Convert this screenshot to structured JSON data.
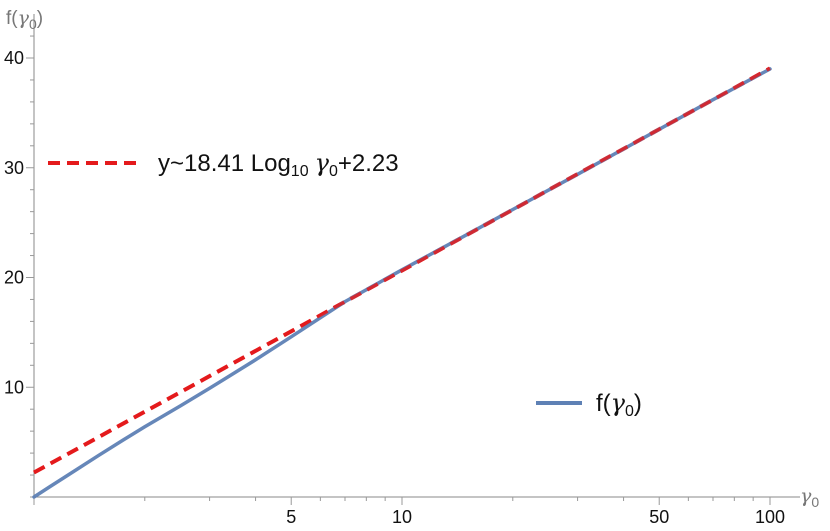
{
  "chart_data": {
    "type": "line",
    "x_scale": "log",
    "xlim": [
      1,
      100
    ],
    "ylim": [
      0,
      40
    ],
    "xlabel": {
      "base": "γ",
      "sub": "0"
    },
    "ylabel": {
      "prefix": "f(",
      "base": "γ",
      "sub": "0",
      "suffix": ")"
    },
    "x_ticks": [
      {
        "value": 5,
        "label": "5"
      },
      {
        "value": 10,
        "label": "10"
      },
      {
        "value": 50,
        "label": "50"
      },
      {
        "value": 100,
        "label": "100"
      }
    ],
    "y_ticks": [
      {
        "value": 10,
        "label": "10"
      },
      {
        "value": 20,
        "label": "20"
      },
      {
        "value": 30,
        "label": "30"
      },
      {
        "value": 40,
        "label": "40"
      }
    ],
    "series": [
      {
        "name": "f(γ0)",
        "legend": {
          "prefix": "f(",
          "base": "γ",
          "sub": "0",
          "suffix": ")"
        },
        "style": "solid",
        "color": "#5e81b5",
        "points": [
          [
            1,
            0
          ],
          [
            1.1,
            0.9
          ],
          [
            1.25,
            2.1
          ],
          [
            1.5,
            3.8
          ],
          [
            1.75,
            5.2
          ],
          [
            2,
            6.4
          ],
          [
            2.5,
            8.3
          ],
          [
            3,
            9.9
          ],
          [
            4,
            12.5
          ],
          [
            5,
            14.6
          ],
          [
            7,
            17.8
          ],
          [
            10,
            20.7
          ],
          [
            15,
            23.9
          ],
          [
            20,
            26.2
          ],
          [
            30,
            29.4
          ],
          [
            50,
            33.5
          ],
          [
            70,
            36.2
          ],
          [
            100,
            39.0
          ]
        ]
      },
      {
        "name": "y~18.41 Log10 γ0+2.23",
        "legend": {
          "text1": "y~18.41 Log",
          "sub1": "10",
          "base": "γ",
          "sub2": "0",
          "text2": "+2.23"
        },
        "style": "dashed",
        "color": "#e41a1c",
        "formula": {
          "a": 18.41,
          "b": 2.23,
          "log_base": 10
        }
      }
    ],
    "grid": false,
    "legend_placement": "inside (dashed: upper-left, solid: lower-right)"
  }
}
